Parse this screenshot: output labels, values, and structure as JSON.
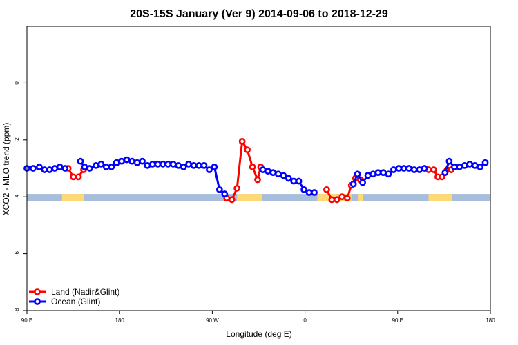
{
  "chart_data": {
    "type": "line",
    "title": "20S-15S January (Ver 9)   2014-09-06 to 2018-12-29",
    "xlabel": "Longitude (deg E)",
    "ylabel": "XCO2 - MLO trend (ppm)",
    "xlim": [
      90,
      540
    ],
    "ylim": [
      -8,
      2
    ],
    "xticks": [
      {
        "value": 90,
        "label": "90 E"
      },
      {
        "value": 180,
        "label": "180"
      },
      {
        "value": 270,
        "label": "90 W"
      },
      {
        "value": 360,
        "label": "0"
      },
      {
        "value": 450,
        "label": "90 E"
      },
      {
        "value": 540,
        "label": "180"
      }
    ],
    "yticks": [
      {
        "value": -8,
        "label": "-8"
      },
      {
        "value": -6,
        "label": "-6"
      },
      {
        "value": -4,
        "label": "-4"
      },
      {
        "value": -2,
        "label": "-2"
      },
      {
        "value": 0,
        "label": "0"
      }
    ],
    "legend_position": "bottom-left",
    "series": [
      {
        "name": "Land (Nadir&Glint)",
        "color": "#ff0000",
        "points": [
          [
            130,
            -3.0
          ],
          [
            135,
            -3.3
          ],
          [
            140,
            -3.3
          ],
          [
            145,
            -3.05
          ],
          [
            178,
            -2.8
          ],
          [
            284,
            -4.05
          ],
          [
            289,
            -4.1
          ],
          [
            294,
            -3.7
          ],
          [
            299,
            -2.05
          ],
          [
            304,
            -2.35
          ],
          [
            309,
            -2.95
          ],
          [
            314,
            -3.4
          ],
          [
            317,
            -2.95
          ],
          [
            381,
            -3.75
          ],
          [
            386,
            -4.1
          ],
          [
            391,
            -4.1
          ],
          [
            396,
            -4.0
          ],
          [
            401,
            -4.05
          ],
          [
            405,
            -3.6
          ],
          [
            409,
            -3.35
          ],
          [
            414,
            -3.4
          ],
          [
            480,
            -3.05
          ],
          [
            485,
            -3.05
          ],
          [
            489,
            -3.3
          ],
          [
            493,
            -3.3
          ],
          [
            498,
            -3.05
          ],
          [
            502,
            -3.05
          ]
        ]
      },
      {
        "name": "Ocean (Glint)",
        "color": "#0000ff",
        "points": [
          [
            90,
            -3.0
          ],
          [
            96,
            -3.0
          ],
          [
            102,
            -2.95
          ],
          [
            107,
            -3.05
          ],
          [
            112,
            -3.05
          ],
          [
            117,
            -3.0
          ],
          [
            122,
            -2.95
          ],
          [
            127,
            -3.0
          ],
          [
            142,
            -2.75
          ],
          [
            146,
            -2.95
          ],
          [
            151,
            -3.0
          ],
          [
            157,
            -2.9
          ],
          [
            162,
            -2.85
          ],
          [
            167,
            -2.95
          ],
          [
            172,
            -2.95
          ],
          [
            177,
            -2.8
          ],
          [
            182,
            -2.75
          ],
          [
            187,
            -2.7
          ],
          [
            192,
            -2.75
          ],
          [
            197,
            -2.8
          ],
          [
            202,
            -2.75
          ],
          [
            207,
            -2.9
          ],
          [
            212,
            -2.85
          ],
          [
            217,
            -2.85
          ],
          [
            222,
            -2.85
          ],
          [
            227,
            -2.85
          ],
          [
            232,
            -2.85
          ],
          [
            237,
            -2.9
          ],
          [
            242,
            -2.95
          ],
          [
            247,
            -2.85
          ],
          [
            252,
            -2.9
          ],
          [
            257,
            -2.9
          ],
          [
            262,
            -2.9
          ],
          [
            267,
            -3.05
          ],
          [
            272,
            -2.95
          ],
          [
            277,
            -3.75
          ],
          [
            282,
            -3.9
          ],
          [
            319,
            -3.05
          ],
          [
            324,
            -3.1
          ],
          [
            329,
            -3.15
          ],
          [
            334,
            -3.2
          ],
          [
            339,
            -3.25
          ],
          [
            344,
            -3.35
          ],
          [
            349,
            -3.45
          ],
          [
            354,
            -3.45
          ],
          [
            359,
            -3.75
          ],
          [
            364,
            -3.85
          ],
          [
            369,
            -3.85
          ],
          [
            407,
            -3.55
          ],
          [
            411,
            -3.2
          ],
          [
            416,
            -3.5
          ],
          [
            421,
            -3.25
          ],
          [
            426,
            -3.2
          ],
          [
            431,
            -3.15
          ],
          [
            436,
            -3.15
          ],
          [
            441,
            -3.2
          ],
          [
            446,
            -3.05
          ],
          [
            451,
            -3.0
          ],
          [
            456,
            -3.0
          ],
          [
            461,
            -3.0
          ],
          [
            466,
            -3.05
          ],
          [
            471,
            -3.05
          ],
          [
            476,
            -3.0
          ],
          [
            496,
            -3.15
          ],
          [
            500,
            -2.75
          ],
          [
            505,
            -2.95
          ],
          [
            510,
            -2.95
          ],
          [
            515,
            -2.9
          ],
          [
            520,
            -2.85
          ],
          [
            525,
            -2.9
          ],
          [
            530,
            -2.95
          ],
          [
            535,
            -2.8
          ]
        ]
      }
    ],
    "surface_band": {
      "y_range": [
        -4.15,
        -3.9
      ],
      "ocean_color": "#a6bddb",
      "land_color": "#fed976",
      "land_segments": [
        [
          124,
          145
        ],
        [
          294,
          318
        ],
        [
          372,
          405
        ],
        [
          412,
          416
        ],
        [
          480,
          503
        ]
      ]
    }
  }
}
